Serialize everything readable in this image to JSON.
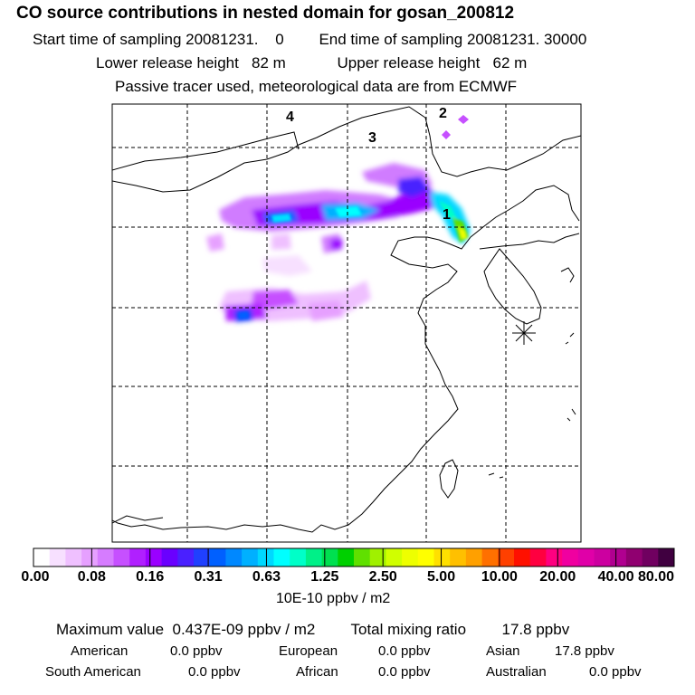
{
  "header": {
    "title": "CO  source contributions in nested domain for gosan_200812",
    "start_label": "Start time of sampling",
    "start_value": "20081231.",
    "start_zero": "0",
    "end_label": "End time of sampling",
    "end_value": "20081231. 30000",
    "lower_label": "Lower release height",
    "lower_value": "82 m",
    "upper_label": "Upper release height",
    "upper_value": "62 m",
    "tracer_note": "Passive tracer used, meteorological data are from ECMWF"
  },
  "map": {
    "region_labels": [
      "1",
      "2",
      "3",
      "4"
    ]
  },
  "colorbar": {
    "ticks": [
      "0.00",
      "0.08",
      "0.16",
      "0.31",
      "0.63",
      "1.25",
      "2.50",
      "5.00",
      "10.00",
      "20.00",
      "40.00",
      "80.00"
    ],
    "units": "10E-10 ppbv / m2",
    "colors": [
      "#ffffff",
      "#f7e0ff",
      "#efc0ff",
      "#e6a0ff",
      "#d67cff",
      "#c650ff",
      "#b020ff",
      "#9a00ff",
      "#6a00ff",
      "#4a20ff",
      "#2040ff",
      "#0060ff",
      "#0088ff",
      "#00b0ff",
      "#00d8ff",
      "#00ffff",
      "#00ffc8",
      "#00f088",
      "#00e050",
      "#00d000",
      "#60e000",
      "#a0f000",
      "#d0ff00",
      "#eeff00",
      "#ffff00",
      "#ffe000",
      "#ffc000",
      "#ffa000",
      "#ff7000",
      "#ff4000",
      "#ff1000",
      "#ff0040",
      "#ff0080",
      "#f000a0",
      "#e000a8",
      "#cc00a0",
      "#b00090",
      "#900070",
      "#700060",
      "#400040"
    ]
  },
  "summary": {
    "max_label": "Maximum value",
    "max_value": "0.437E-09 ppbv / m2",
    "total_label": "Total mixing ratio",
    "total_value": "17.8 ppbv",
    "regions": [
      {
        "name": "American",
        "value": "0.0 ppbv"
      },
      {
        "name": "European",
        "value": "0.0 ppbv"
      },
      {
        "name": "Asian",
        "value": "17.8 ppbv"
      },
      {
        "name": "South American",
        "value": "0.0 ppbv"
      },
      {
        "name": "African",
        "value": "0.0 ppbv"
      },
      {
        "name": "Australian",
        "value": "0.0 ppbv"
      }
    ]
  }
}
